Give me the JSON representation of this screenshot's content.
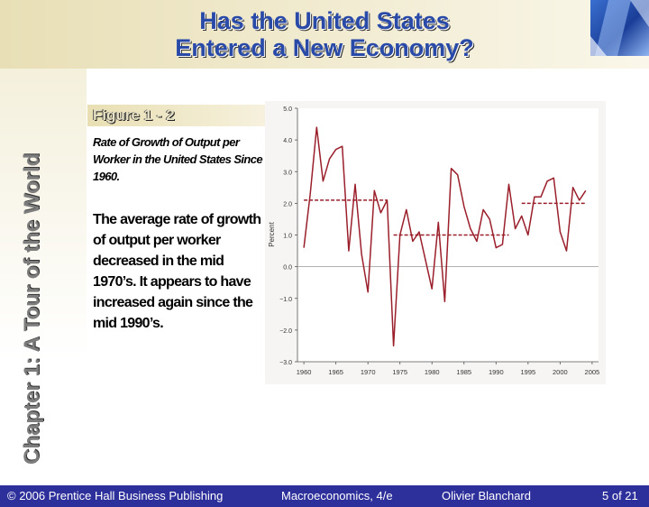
{
  "slide": {
    "title_line1": "Has the United States",
    "title_line2": "Entered a New Economy?",
    "side_title": "Chapter 1: A Tour of the World",
    "figure_label": "Figure 1 - 2",
    "figure_caption": "Rate of Growth of Output per Worker in the United States Since 1960.",
    "body_text": "The average rate of growth of output per worker decreased in the mid 1970’s. It appears to have increased again since the mid 1990’s."
  },
  "footer": {
    "copyright": "© 2006 Prentice Hall Business Publishing",
    "book": "Macroeconomics, 4/e",
    "author": "Olivier Blanchard",
    "page": "5 of 21"
  },
  "colors": {
    "line": "#9a1f2b",
    "average": "#9a1f2b",
    "footer_bg": "#2d2f9a",
    "title": "#2a4aa8"
  },
  "chart_data": {
    "type": "line",
    "ylabel": "Percent",
    "xlabel": "",
    "x_ticks": [
      1960,
      1965,
      1970,
      1975,
      1980,
      1985,
      1990,
      1995,
      2000,
      2005
    ],
    "y_ticks": [
      -3.0,
      -2.0,
      -1.0,
      0.0,
      1.0,
      2.0,
      3.0,
      4.0,
      5.0
    ],
    "xlim": [
      1959,
      2006
    ],
    "ylim": [
      -3.0,
      5.0
    ],
    "zero_line": true,
    "series": [
      {
        "x": [
          1960,
          1961,
          1962,
          1963,
          1964,
          1965,
          1966,
          1967,
          1968,
          1969,
          1970,
          1971,
          1972,
          1973,
          1974,
          1975,
          1976,
          1977,
          1978,
          1979,
          1980,
          1981,
          1982,
          1983,
          1984,
          1985,
          1986,
          1987,
          1988,
          1989,
          1990,
          1991,
          1992,
          1993,
          1994,
          1995,
          1996,
          1997,
          1998,
          1999,
          2000,
          2001,
          2002,
          2003,
          2004
        ],
        "y": [
          0.6,
          2.3,
          4.4,
          2.7,
          3.4,
          3.7,
          3.8,
          0.5,
          2.6,
          0.4,
          -0.8,
          2.4,
          1.7,
          2.1,
          -2.5,
          1.0,
          1.8,
          0.8,
          1.1,
          0.2,
          -0.7,
          1.4,
          -1.1,
          3.1,
          2.9,
          1.9,
          1.2,
          0.8,
          1.8,
          1.5,
          0.6,
          0.7,
          2.6,
          1.2,
          1.6,
          1.0,
          2.2,
          2.2,
          2.7,
          2.8,
          1.1,
          0.5,
          2.5,
          2.1,
          2.4
        ]
      }
    ],
    "averages": [
      {
        "x_start": 1960,
        "x_end": 1973,
        "y": 2.1
      },
      {
        "x_start": 1974,
        "x_end": 1992,
        "y": 1.0
      },
      {
        "x_start": 1994,
        "x_end": 2004,
        "y": 2.0
      }
    ]
  }
}
